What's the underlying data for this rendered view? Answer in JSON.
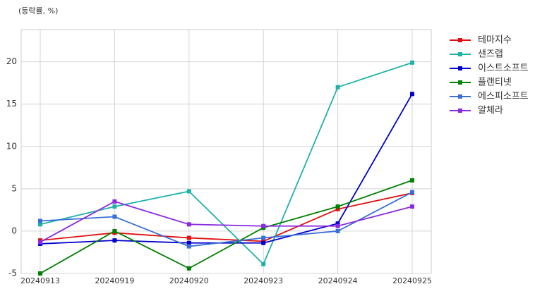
{
  "chart_data": {
    "type": "line",
    "subtitle": "(등락률, %)",
    "categories": [
      "20240913",
      "20240919",
      "20240920",
      "20240923",
      "20240924",
      "20240925"
    ],
    "series": [
      {
        "name": "테마지수",
        "color": "#e01010",
        "values": [
          -1.1,
          -0.2,
          -0.8,
          -1.2,
          2.6,
          4.5
        ]
      },
      {
        "name": "샌즈랩",
        "color": "#20b2aa",
        "values": [
          0.8,
          2.9,
          4.7,
          -3.9,
          17.0,
          19.9
        ]
      },
      {
        "name": "이스트소프트",
        "color": "#0000cd",
        "values": [
          -1.5,
          -1.1,
          -1.4,
          -1.4,
          0.9,
          16.2
        ]
      },
      {
        "name": "플랜티넷",
        "color": "#008000",
        "values": [
          -5.0,
          0.0,
          -4.4,
          0.4,
          2.9,
          6.0
        ]
      },
      {
        "name": "에스피소프트",
        "color": "#3a6fd8",
        "values": [
          1.2,
          1.7,
          -1.8,
          -0.8,
          0.0,
          4.6
        ]
      },
      {
        "name": "알체라",
        "color": "#8a2be2",
        "values": [
          -1.3,
          3.5,
          0.8,
          0.6,
          0.6,
          2.9
        ]
      }
    ],
    "ylim": [
      -5,
      23.8
    ],
    "yticks": [
      -5,
      0,
      5,
      10,
      15,
      20
    ],
    "grid": true,
    "legend": "right"
  }
}
